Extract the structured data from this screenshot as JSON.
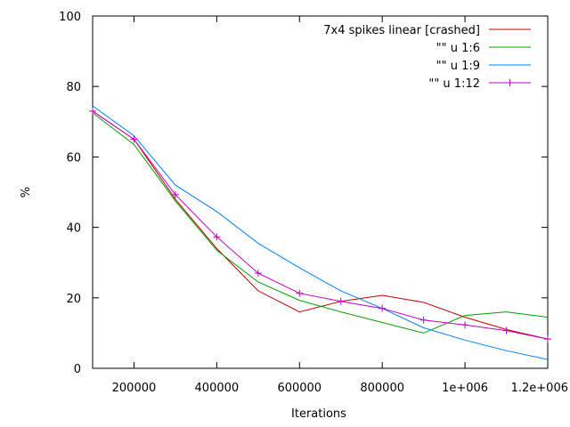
{
  "chart_data": {
    "type": "line",
    "title": "",
    "xlabel": "Iterations",
    "ylabel": "%",
    "xlim": [
      100000,
      1200000
    ],
    "ylim": [
      0,
      100
    ],
    "x_ticks": [
      200000,
      400000,
      600000,
      800000,
      1000000,
      1200000
    ],
    "x_tick_labels": [
      "200000",
      "400000",
      "600000",
      "800000",
      "1e+006",
      "1.2e+006"
    ],
    "y_ticks": [
      0,
      20,
      40,
      60,
      80,
      100
    ],
    "y_tick_labels": [
      "0",
      "20",
      "40",
      "60",
      "80",
      "100"
    ],
    "grid": false,
    "legend_position": "top-right",
    "x": [
      100000,
      200000,
      300000,
      400000,
      500000,
      600000,
      700000,
      800000,
      900000,
      1000000,
      1100000,
      1200000
    ],
    "series": [
      {
        "name": "7x4 spikes linear [crashed]",
        "color": "#c00000",
        "marker": "none",
        "values": [
          73,
          65,
          48,
          34,
          22,
          16,
          19,
          20.7,
          18.7,
          14.5,
          11,
          8.3
        ]
      },
      {
        "name": "\"\" u 1:6",
        "color": "#00a000",
        "marker": "none",
        "values": [
          72.5,
          63.5,
          47.5,
          33.5,
          24.5,
          19.3,
          16,
          13,
          10,
          15,
          16,
          14.5
        ]
      },
      {
        "name": "\"\" u 1:9",
        "color": "#0080ff",
        "marker": "none",
        "values": [
          74.5,
          66,
          52,
          44.5,
          35.5,
          28.5,
          22,
          17,
          11.5,
          8,
          5,
          2.5
        ]
      },
      {
        "name": "\"\" u 1:12",
        "color": "#c000c0",
        "marker": "plus",
        "values": [
          73,
          65,
          49.3,
          37.3,
          27,
          21.3,
          19,
          17,
          13.7,
          12.3,
          10.7,
          8.3
        ]
      }
    ]
  }
}
